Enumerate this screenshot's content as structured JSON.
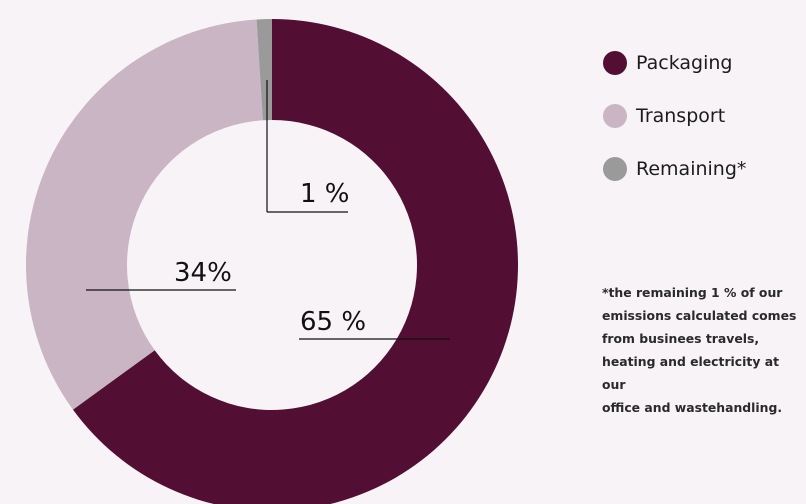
{
  "chart_data": {
    "type": "pie",
    "donut": true,
    "categories": [
      "Packaging",
      "Transport",
      "Remaining*"
    ],
    "values": [
      65,
      34,
      1
    ],
    "data_labels": [
      "65 %",
      "34%",
      "1 %"
    ],
    "colors": [
      "#520f33",
      "#c9b5c3",
      "#9a9a9a"
    ],
    "legend_position": "right"
  },
  "legend": {
    "items": [
      {
        "label": "Packaging",
        "color": "#520f33"
      },
      {
        "label": "Transport",
        "color": "#c9b5c3"
      },
      {
        "label": "Remaining*",
        "color": "#9a9a9a"
      }
    ]
  },
  "footnote": {
    "lines": [
      "*the remaining 1 % of our",
      "emissions calculated comes",
      "from businees travels,",
      "heating and electricity at our",
      "office and wastehandling."
    ]
  },
  "colors": {
    "background": "#f7f3f6",
    "text": "#111111"
  }
}
